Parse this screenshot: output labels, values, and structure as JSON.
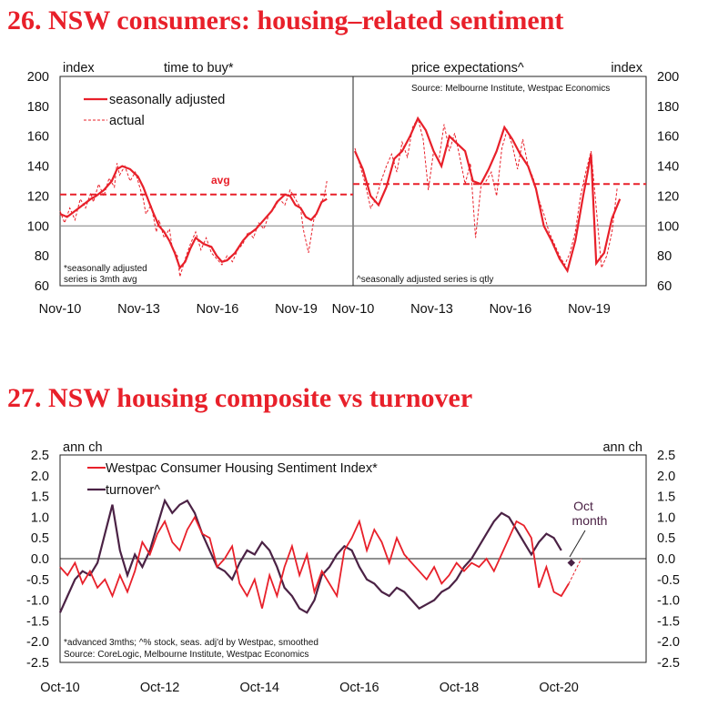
{
  "headings": {
    "h26": "26. NSW consumers: housing–related sentiment",
    "h27": "27. NSW housing composite vs turnover"
  },
  "colors": {
    "red": "#e8202a",
    "purple": "#4b2245",
    "grey": "#7f7f7f"
  },
  "chart_data": [
    {
      "type": "line",
      "title": "time to buy*",
      "ylabel": "index",
      "ylim": [
        60,
        200
      ],
      "yticks": [
        "200",
        "180",
        "160",
        "140",
        "120",
        "100",
        "80",
        "60"
      ],
      "x_range": [
        2010.83,
        2022.0
      ],
      "x_ticks": [
        {
          "label": "Nov-10",
          "x": 2010.83
        },
        {
          "label": "Nov-13",
          "x": 2013.83
        },
        {
          "label": "Nov-16",
          "x": 2016.83
        },
        {
          "label": "Nov-19",
          "x": 2019.83
        }
      ],
      "reference_lines": {
        "avg": 121,
        "neutral": 100
      },
      "avg_label": "avg",
      "legend": {
        "sa": "seasonally adjusted",
        "actual": "actual"
      },
      "note": [
        "*seasonally adjusted",
        "series is 3mth avg"
      ],
      "series": [
        {
          "name": "seasonally adjusted",
          "x": [
            2010.83,
            2011.1,
            2011.4,
            2011.7,
            2012.0,
            2012.2,
            2012.5,
            2012.8,
            2013.0,
            2013.2,
            2013.5,
            2013.8,
            2014.0,
            2014.2,
            2014.4,
            2014.6,
            2014.8,
            2015.0,
            2015.2,
            2015.4,
            2015.6,
            2015.8,
            2016.0,
            2016.3,
            2016.6,
            2016.8,
            2017.0,
            2017.2,
            2017.5,
            2017.8,
            2018.0,
            2018.3,
            2018.6,
            2018.9,
            2019.1,
            2019.4,
            2019.6,
            2019.8,
            2020.0,
            2020.2,
            2020.4,
            2020.6,
            2020.8,
            2021.0
          ],
          "y": [
            108,
            106,
            110,
            114,
            118,
            120,
            124,
            130,
            138,
            140,
            138,
            133,
            126,
            117,
            108,
            100,
            96,
            90,
            82,
            72,
            76,
            85,
            92,
            88,
            86,
            80,
            76,
            77,
            82,
            90,
            94,
            98,
            104,
            110,
            116,
            121,
            120,
            114,
            112,
            106,
            104,
            108,
            116,
            118
          ]
        },
        {
          "name": "actual",
          "x": [
            2010.83,
            2011.0,
            2011.2,
            2011.4,
            2011.6,
            2011.8,
            2012.0,
            2012.1,
            2012.3,
            2012.5,
            2012.7,
            2012.9,
            2013.0,
            2013.1,
            2013.3,
            2013.5,
            2013.7,
            2013.9,
            2014.0,
            2014.1,
            2014.3,
            2014.5,
            2014.6,
            2014.8,
            2015.0,
            2015.1,
            2015.3,
            2015.4,
            2015.6,
            2015.8,
            2016.0,
            2016.2,
            2016.4,
            2016.6,
            2016.8,
            2017.0,
            2017.2,
            2017.4,
            2017.6,
            2017.8,
            2018.0,
            2018.2,
            2018.4,
            2018.6,
            2018.8,
            2019.0,
            2019.2,
            2019.4,
            2019.6,
            2019.8,
            2020.0,
            2020.1,
            2020.3,
            2020.5,
            2020.7,
            2020.9,
            2021.0
          ],
          "y": [
            110,
            102,
            112,
            104,
            118,
            112,
            122,
            116,
            128,
            120,
            132,
            126,
            142,
            134,
            140,
            130,
            136,
            124,
            118,
            108,
            114,
            96,
            104,
            92,
            98,
            86,
            80,
            66,
            78,
            88,
            96,
            84,
            92,
            82,
            78,
            74,
            80,
            76,
            84,
            88,
            96,
            92,
            102,
            98,
            108,
            112,
            118,
            114,
            124,
            118,
            112,
            98,
            82,
            104,
            112,
            120,
            130
          ]
        }
      ]
    },
    {
      "type": "line",
      "title": "price expectations^",
      "ylabel": "index",
      "ylim": [
        60,
        200
      ],
      "yticks": [
        "200",
        "180",
        "160",
        "140",
        "120",
        "100",
        "80",
        "60"
      ],
      "x_range": [
        2010.83,
        2022.0
      ],
      "x_ticks": [
        {
          "label": "Nov-10",
          "x": 2010.83
        },
        {
          "label": "Nov-13",
          "x": 2013.83
        },
        {
          "label": "Nov-16",
          "x": 2016.83
        },
        {
          "label": "Nov-19",
          "x": 2019.83
        }
      ],
      "reference_lines": {
        "avg": 128,
        "neutral": 100
      },
      "source": "Source: Melbourne Institute, Westpac Economics",
      "note": [
        "^seasonally adjusted series is qtly"
      ],
      "series": [
        {
          "name": "seasonally adjusted",
          "x": [
            2010.9,
            2011.2,
            2011.5,
            2011.8,
            2012.1,
            2012.4,
            2012.7,
            2013.0,
            2013.3,
            2013.6,
            2013.9,
            2014.2,
            2014.5,
            2014.8,
            2015.1,
            2015.4,
            2015.7,
            2016.0,
            2016.3,
            2016.6,
            2016.9,
            2017.2,
            2017.5,
            2017.8,
            2018.1,
            2018.4,
            2018.7,
            2019.0,
            2019.3,
            2019.6,
            2019.9,
            2020.1,
            2020.4,
            2020.7,
            2021.0
          ],
          "y": [
            150,
            138,
            120,
            114,
            126,
            145,
            150,
            160,
            172,
            164,
            150,
            140,
            160,
            155,
            150,
            130,
            128,
            138,
            150,
            166,
            158,
            148,
            140,
            125,
            100,
            90,
            78,
            70,
            90,
            120,
            148,
            75,
            82,
            105,
            118
          ]
        },
        {
          "name": "actual",
          "x": [
            2010.9,
            2011.1,
            2011.3,
            2011.5,
            2011.7,
            2011.9,
            2012.1,
            2012.3,
            2012.5,
            2012.7,
            2012.9,
            2013.1,
            2013.3,
            2013.5,
            2013.7,
            2013.9,
            2014.1,
            2014.3,
            2014.5,
            2014.7,
            2014.9,
            2015.1,
            2015.3,
            2015.5,
            2015.7,
            2015.9,
            2016.1,
            2016.3,
            2016.5,
            2016.7,
            2016.9,
            2017.1,
            2017.3,
            2017.5,
            2017.7,
            2017.9,
            2018.1,
            2018.3,
            2018.5,
            2018.7,
            2018.9,
            2019.1,
            2019.3,
            2019.5,
            2019.7,
            2019.9,
            2020.1,
            2020.3,
            2020.5,
            2020.7,
            2020.9
          ],
          "y": [
            152,
            140,
            128,
            112,
            118,
            130,
            140,
            148,
            136,
            156,
            146,
            166,
            172,
            158,
            124,
            150,
            144,
            168,
            150,
            162,
            146,
            128,
            142,
            92,
            126,
            130,
            136,
            120,
            152,
            164,
            154,
            138,
            158,
            140,
            132,
            118,
            108,
            96,
            88,
            80,
            74,
            82,
            96,
            120,
            136,
            150,
            112,
            72,
            80,
            96,
            126
          ]
        }
      ]
    },
    {
      "type": "line",
      "ylabel_left": "ann ch",
      "ylabel_right": "ann ch",
      "ylim": [
        -2.5,
        2.5
      ],
      "yticks": [
        "2.5",
        "2.0",
        "1.5",
        "1.0",
        "0.5",
        "0.0",
        "-0.5",
        "-1.0",
        "-1.5",
        "-2.0",
        "-2.5"
      ],
      "x_range": [
        2010.75,
        2022.5
      ],
      "x_ticks": [
        {
          "label": "Oct-10",
          "x": 2010.75
        },
        {
          "label": "Oct-12",
          "x": 2012.75
        },
        {
          "label": "Oct-14",
          "x": 2014.75
        },
        {
          "label": "Oct-16",
          "x": 2016.75
        },
        {
          "label": "Oct-18",
          "x": 2018.75
        },
        {
          "label": "Oct-20",
          "x": 2020.75
        }
      ],
      "legend": {
        "a": "Westpac Consumer Housing Sentiment Index*",
        "b": "turnover^"
      },
      "annotation": [
        "Oct",
        "month"
      ],
      "annotation_point": {
        "x": 2021.0,
        "y": -0.1
      },
      "notes": [
        "*advanced 3mths; ^% stock, seas. adj'd by Westpac, smoothed",
        "Source: CoreLogic, Melbourne Institute, Westpac Economics"
      ],
      "series": [
        {
          "name": "Westpac Consumer Housing Sentiment Index*",
          "x": [
            2010.75,
            2010.9,
            2011.05,
            2011.2,
            2011.35,
            2011.5,
            2011.65,
            2011.8,
            2011.95,
            2012.1,
            2012.25,
            2012.4,
            2012.55,
            2012.7,
            2012.85,
            2013.0,
            2013.15,
            2013.3,
            2013.45,
            2013.6,
            2013.75,
            2013.9,
            2014.05,
            2014.2,
            2014.35,
            2014.5,
            2014.65,
            2014.8,
            2014.95,
            2015.1,
            2015.25,
            2015.4,
            2015.55,
            2015.7,
            2015.85,
            2016.0,
            2016.15,
            2016.3,
            2016.45,
            2016.6,
            2016.75,
            2016.9,
            2017.05,
            2017.2,
            2017.35,
            2017.5,
            2017.65,
            2017.8,
            2017.95,
            2018.1,
            2018.25,
            2018.4,
            2018.55,
            2018.7,
            2018.85,
            2019.0,
            2019.15,
            2019.3,
            2019.45,
            2019.6,
            2019.75,
            2019.9,
            2020.05,
            2020.2,
            2020.35,
            2020.5,
            2020.65,
            2020.8,
            2020.95
          ],
          "y": [
            -0.2,
            -0.4,
            -0.1,
            -0.6,
            -0.3,
            -0.7,
            -0.5,
            -0.9,
            -0.4,
            -0.8,
            -0.3,
            0.4,
            0.1,
            0.6,
            0.9,
            0.4,
            0.2,
            0.7,
            1.0,
            0.6,
            0.5,
            -0.2,
            0.0,
            0.3,
            -0.6,
            -0.9,
            -0.5,
            -1.2,
            -0.4,
            -0.9,
            -0.2,
            0.3,
            -0.4,
            0.1,
            -0.8,
            -0.3,
            -0.6,
            -0.9,
            0.2,
            0.5,
            0.9,
            0.2,
            0.7,
            0.4,
            -0.1,
            0.5,
            0.1,
            -0.1,
            -0.3,
            -0.5,
            -0.2,
            -0.6,
            -0.4,
            -0.1,
            -0.3,
            -0.1,
            -0.2,
            0.0,
            -0.3,
            0.1,
            0.5,
            0.9,
            0.8,
            0.5,
            -0.7,
            -0.2,
            -0.8,
            -0.9,
            -0.6
          ]
        },
        {
          "name": "turnover^",
          "x": [
            2010.75,
            2010.9,
            2011.05,
            2011.2,
            2011.35,
            2011.5,
            2011.65,
            2011.8,
            2011.95,
            2012.1,
            2012.25,
            2012.4,
            2012.55,
            2012.7,
            2012.85,
            2013.0,
            2013.15,
            2013.3,
            2013.45,
            2013.6,
            2013.75,
            2013.9,
            2014.05,
            2014.2,
            2014.35,
            2014.5,
            2014.65,
            2014.8,
            2014.95,
            2015.1,
            2015.25,
            2015.4,
            2015.55,
            2015.7,
            2015.85,
            2016.0,
            2016.15,
            2016.3,
            2016.45,
            2016.6,
            2016.75,
            2016.9,
            2017.05,
            2017.2,
            2017.35,
            2017.5,
            2017.65,
            2017.8,
            2017.95,
            2018.1,
            2018.25,
            2018.4,
            2018.55,
            2018.7,
            2018.85,
            2019.0,
            2019.15,
            2019.3,
            2019.45,
            2019.6,
            2019.75,
            2019.9,
            2020.05,
            2020.2,
            2020.35,
            2020.5,
            2020.65,
            2020.8
          ],
          "y": [
            -1.3,
            -0.9,
            -0.5,
            -0.3,
            -0.4,
            -0.1,
            0.6,
            1.3,
            0.2,
            -0.4,
            0.1,
            -0.2,
            0.2,
            0.8,
            1.4,
            1.1,
            1.3,
            1.4,
            1.1,
            0.6,
            0.2,
            -0.2,
            -0.3,
            -0.5,
            -0.1,
            0.2,
            0.1,
            0.4,
            0.2,
            -0.2,
            -0.7,
            -0.9,
            -1.2,
            -1.3,
            -1.0,
            -0.4,
            -0.2,
            0.1,
            0.3,
            0.2,
            -0.2,
            -0.5,
            -0.6,
            -0.8,
            -0.9,
            -0.7,
            -0.8,
            -1.0,
            -1.2,
            -1.1,
            -1.0,
            -0.8,
            -0.7,
            -0.5,
            -0.2,
            0.0,
            0.3,
            0.6,
            0.9,
            1.1,
            1.0,
            0.7,
            0.4,
            0.1,
            0.4,
            0.6,
            0.5,
            0.2
          ]
        }
      ]
    }
  ]
}
